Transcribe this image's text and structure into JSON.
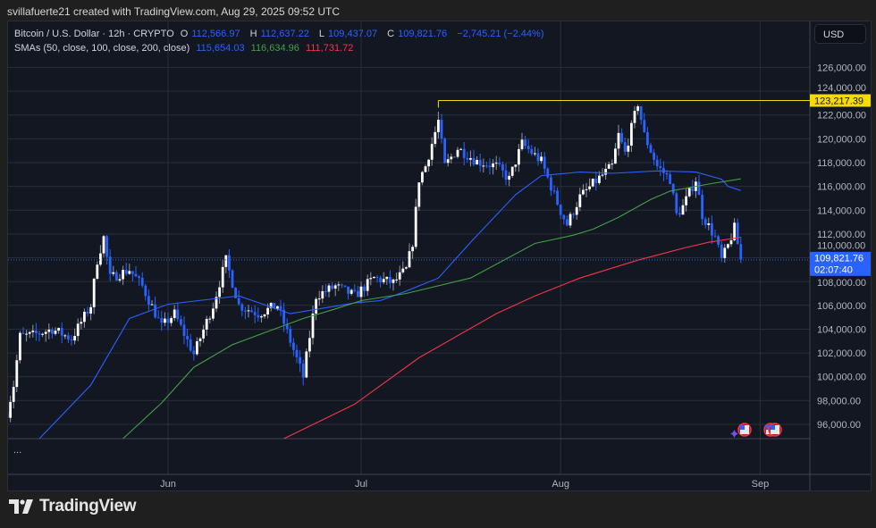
{
  "header": {
    "credit": "svillafuerte21 created with TradingView.com, Aug 29, 2025 09:52 UTC"
  },
  "legend": {
    "symbol": "Bitcoin / U.S. Dollar · 12h · CRYPTO",
    "o_label": "O",
    "o": "112,566.97",
    "h_label": "H",
    "h": "112,637.22",
    "l_label": "L",
    "l": "109,437.07",
    "c_label": "C",
    "c": "109,821.76",
    "change": "−2,745.21 (−2.44%)",
    "sma_label": "SMAs (50, close, 100, close, 200, close)",
    "sma50": "115,654.03",
    "sma100": "116,634.96",
    "sma200": "111,731.72"
  },
  "currency_button": "USD",
  "more_indicator": "...",
  "branding": {
    "logo_text": "TradingView"
  },
  "colors": {
    "up": "#ffffff",
    "down": "#2962ff",
    "sma50": "#2962ff",
    "sma100": "#43a047",
    "sma200": "#f23645",
    "level": "#f5d90a",
    "background": "#131722",
    "grid": "#2a2e39"
  },
  "icons": [
    "us-flag-event-icon",
    "us-flag-event-icon",
    "sparkle-icon"
  ],
  "chart_data": {
    "type": "candlestick",
    "interval": "12h",
    "ylim": [
      94800,
      129800
    ],
    "grid": true,
    "y_ticks": [
      "96,000.00",
      "98,000.00",
      "100,000.00",
      "102,000.00",
      "104,000.00",
      "106,000.00",
      "108,000.00",
      "110,000.00",
      "112,000.00",
      "114,000.00",
      "116,000.00",
      "118,000.00",
      "120,000.00",
      "122,000.00",
      "124,000.00",
      "126,000.00"
    ],
    "x_ticks": [
      {
        "label": "Jun",
        "date": "2025-06-01"
      },
      {
        "label": "Jul",
        "date": "2025-07-01"
      },
      {
        "label": "Aug",
        "date": "2025-08-01"
      },
      {
        "label": "Sep",
        "date": "2025-09-01"
      }
    ],
    "close_path": [
      [
        "2025-05-07",
        97000
      ],
      [
        "2025-05-08",
        99300
      ],
      [
        "2025-05-09",
        103400
      ],
      [
        "2025-05-11",
        103500
      ],
      [
        "2025-05-14",
        104000
      ],
      [
        "2025-05-17",
        103200
      ],
      [
        "2025-05-20",
        106000
      ],
      [
        "2025-05-21",
        109800
      ],
      [
        "2025-05-22",
        111700
      ],
      [
        "2025-05-23",
        108300
      ],
      [
        "2025-05-26",
        109000
      ],
      [
        "2025-05-28",
        107600
      ],
      [
        "2025-05-31",
        104200
      ],
      [
        "2025-06-02",
        105300
      ],
      [
        "2025-06-05",
        101900
      ],
      [
        "2025-06-08",
        106000
      ],
      [
        "2025-06-10",
        109800
      ],
      [
        "2025-06-12",
        106000
      ],
      [
        "2025-06-15",
        105300
      ],
      [
        "2025-06-18",
        106000
      ],
      [
        "2025-06-20",
        103000
      ],
      [
        "2025-06-22",
        100000
      ],
      [
        "2025-06-24",
        106800
      ],
      [
        "2025-06-27",
        107600
      ],
      [
        "2025-06-30",
        106800
      ],
      [
        "2025-07-03",
        108300
      ],
      [
        "2025-07-06",
        107900
      ],
      [
        "2025-07-08",
        109000
      ],
      [
        "2025-07-09",
        111300
      ],
      [
        "2025-07-10",
        116600
      ],
      [
        "2025-07-11",
        117700
      ],
      [
        "2025-07-13",
        121500
      ],
      [
        "2025-07-14",
        117700
      ],
      [
        "2025-07-16",
        119200
      ],
      [
        "2025-07-19",
        118100
      ],
      [
        "2025-07-22",
        117700
      ],
      [
        "2025-07-24",
        116600
      ],
      [
        "2025-07-26",
        119600
      ],
      [
        "2025-07-29",
        118100
      ],
      [
        "2025-08-01",
        113900
      ],
      [
        "2025-08-02",
        112800
      ],
      [
        "2025-08-04",
        115100
      ],
      [
        "2025-08-06",
        116200
      ],
      [
        "2025-08-09",
        117700
      ],
      [
        "2025-08-10",
        120300
      ],
      [
        "2025-08-11",
        118800
      ],
      [
        "2025-08-13",
        123000
      ],
      [
        "2025-08-14",
        120300
      ],
      [
        "2025-08-16",
        117700
      ],
      [
        "2025-08-18",
        116600
      ],
      [
        "2025-08-19",
        113600
      ],
      [
        "2025-08-20",
        114300
      ],
      [
        "2025-08-22",
        116600
      ],
      [
        "2025-08-23",
        113600
      ],
      [
        "2025-08-25",
        111700
      ],
      [
        "2025-08-26",
        109800
      ],
      [
        "2025-08-27",
        111000
      ],
      [
        "2025-08-28",
        112500
      ],
      [
        "2025-08-29",
        109822
      ]
    ],
    "series": [
      {
        "name": "SMA 50",
        "points": [
          [
            "2025-05-12",
            94800
          ],
          [
            "2025-05-20",
            99300
          ],
          [
            "2025-05-26",
            104900
          ],
          [
            "2025-06-01",
            106100
          ],
          [
            "2025-06-12",
            106800
          ],
          [
            "2025-06-20",
            105300
          ],
          [
            "2025-06-30",
            106200
          ],
          [
            "2025-07-04",
            106400
          ],
          [
            "2025-07-08",
            107200
          ],
          [
            "2025-07-13",
            108300
          ],
          [
            "2025-07-18",
            111300
          ],
          [
            "2025-07-25",
            115300
          ],
          [
            "2025-07-29",
            116900
          ],
          [
            "2025-08-04",
            117200
          ],
          [
            "2025-08-09",
            117100
          ],
          [
            "2025-08-16",
            117300
          ],
          [
            "2025-08-22",
            117200
          ],
          [
            "2025-08-26",
            116600
          ],
          [
            "2025-08-27",
            116000
          ],
          [
            "2025-08-29",
            115654
          ]
        ]
      },
      {
        "name": "SMA 100",
        "points": [
          [
            "2025-05-25",
            94800
          ],
          [
            "2025-05-31",
            97800
          ],
          [
            "2025-06-05",
            100800
          ],
          [
            "2025-06-11",
            102700
          ],
          [
            "2025-06-16",
            103700
          ],
          [
            "2025-06-22",
            104900
          ],
          [
            "2025-06-27",
            105700
          ],
          [
            "2025-07-01",
            106400
          ],
          [
            "2025-07-08",
            107000
          ],
          [
            "2025-07-18",
            108300
          ],
          [
            "2025-07-28",
            111200
          ],
          [
            "2025-08-03",
            111900
          ],
          [
            "2025-08-06",
            112400
          ],
          [
            "2025-08-10",
            113400
          ],
          [
            "2025-08-15",
            114900
          ],
          [
            "2025-08-18",
            115600
          ],
          [
            "2025-08-24",
            116200
          ],
          [
            "2025-08-29",
            116635
          ]
        ]
      },
      {
        "name": "SMA 200",
        "points": [
          [
            "2025-06-19",
            94800
          ],
          [
            "2025-06-30",
            97700
          ],
          [
            "2025-07-10",
            101600
          ],
          [
            "2025-07-22",
            105300
          ],
          [
            "2025-07-28",
            106800
          ],
          [
            "2025-08-04",
            108300
          ],
          [
            "2025-08-13",
            109800
          ],
          [
            "2025-08-20",
            110800
          ],
          [
            "2025-08-24",
            111300
          ],
          [
            "2025-08-29",
            111732
          ]
        ]
      }
    ],
    "level_line": {
      "price": 123217.39,
      "label": "123,217.39",
      "from": "2025-07-13"
    },
    "last_price": {
      "price": 109821.76,
      "label": "109,821.76",
      "countdown": "02:07:40"
    }
  }
}
